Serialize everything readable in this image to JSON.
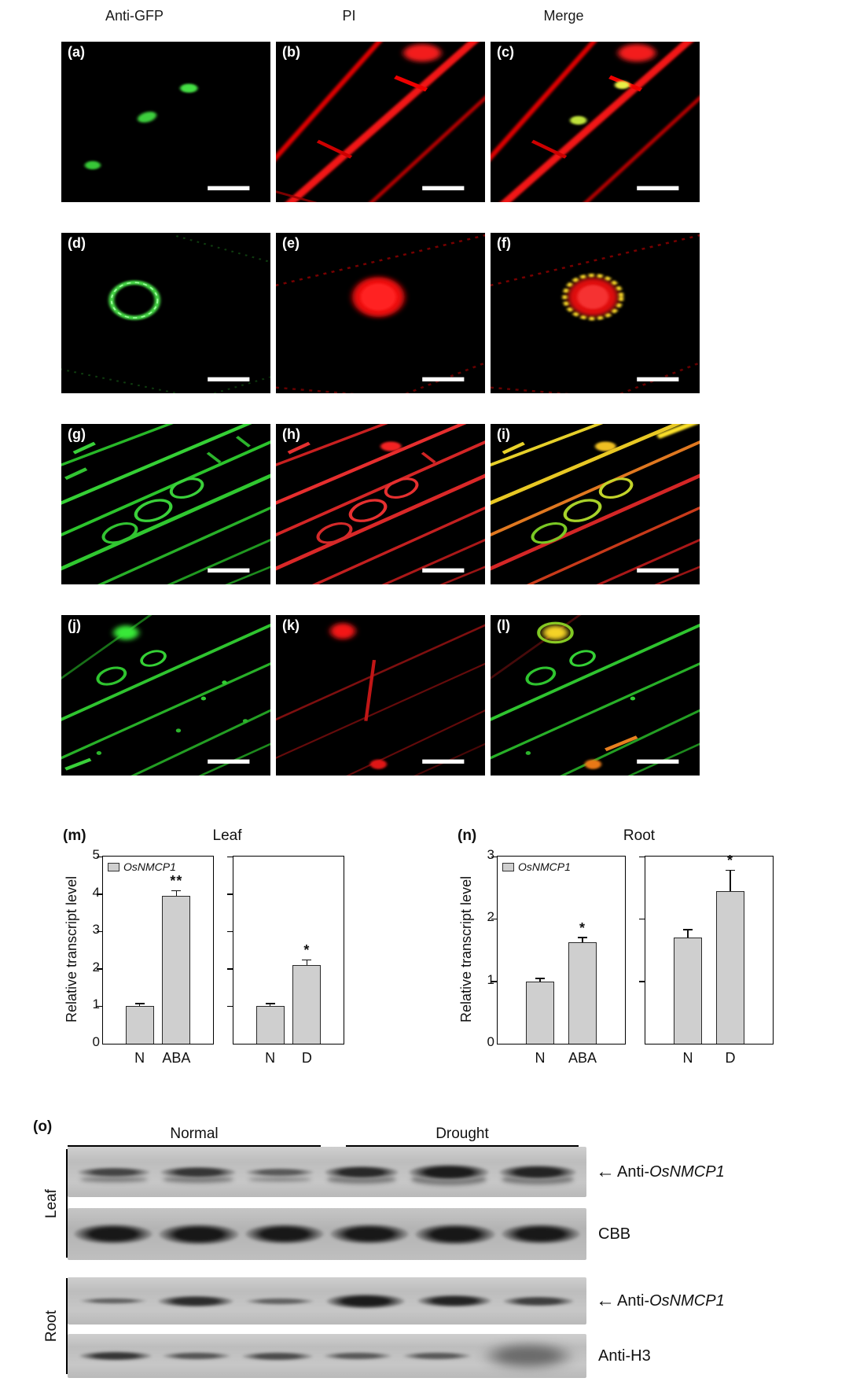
{
  "microscopy": {
    "col_headers": [
      "Anti-GFP",
      "PI",
      "Merge"
    ],
    "panels": [
      {
        "label": "(a)"
      },
      {
        "label": "(b)"
      },
      {
        "label": "(c)"
      },
      {
        "label": "(d)"
      },
      {
        "label": "(e)"
      },
      {
        "label": "(f)"
      },
      {
        "label": "(g)"
      },
      {
        "label": "(h)"
      },
      {
        "label": "(i)"
      },
      {
        "label": "(j)"
      },
      {
        "label": "(k)"
      },
      {
        "label": "(l)"
      }
    ]
  },
  "chart_data": [
    {
      "id": "m",
      "panel_label": "(m)",
      "type": "bar",
      "title": "Leaf",
      "ylabel": "Relative transcript level",
      "ylim": [
        0,
        5
      ],
      "yticks": [
        0,
        1,
        2,
        3,
        4,
        5
      ],
      "legend": "OsNMCP1",
      "bar_color": "#cfcfcf",
      "subplots": [
        {
          "categories": [
            "N",
            "ABA"
          ],
          "values": [
            1.0,
            3.95
          ],
          "errors": [
            0.06,
            0.12
          ],
          "sig": [
            "",
            "**"
          ]
        },
        {
          "categories": [
            "N",
            "D"
          ],
          "values": [
            1.0,
            2.1
          ],
          "errors": [
            0.06,
            0.12
          ],
          "sig": [
            "",
            "*"
          ]
        }
      ]
    },
    {
      "id": "n",
      "panel_label": "(n)",
      "type": "bar",
      "title": "Root",
      "ylabel": "Relative transcript level",
      "ylim": [
        0,
        3
      ],
      "yticks": [
        0,
        1,
        2,
        3
      ],
      "legend": "OsNMCP1",
      "bar_color": "#cfcfcf",
      "subplots": [
        {
          "categories": [
            "N",
            "ABA"
          ],
          "values": [
            1.0,
            1.63
          ],
          "errors": [
            0.04,
            0.06
          ],
          "sig": [
            "",
            "*"
          ]
        },
        {
          "categories": [
            "N",
            "D"
          ],
          "values": [
            1.7,
            2.45
          ],
          "errors": [
            0.12,
            0.32
          ],
          "sig": [
            "",
            "*"
          ]
        }
      ]
    }
  ],
  "blot": {
    "panel_label": "(o)",
    "condition_headers": [
      "Normal",
      "Drought"
    ],
    "side_labels": [
      "Leaf",
      "Root"
    ],
    "strip_labels": [
      {
        "arrow": "←",
        "prefix": "Anti-",
        "gene": "OsNMCP1"
      },
      {
        "prefix": "CBB"
      },
      {
        "arrow": "←",
        "prefix": "Anti-",
        "gene": "OsNMCP1"
      },
      {
        "prefix": "Anti-H3"
      }
    ]
  }
}
